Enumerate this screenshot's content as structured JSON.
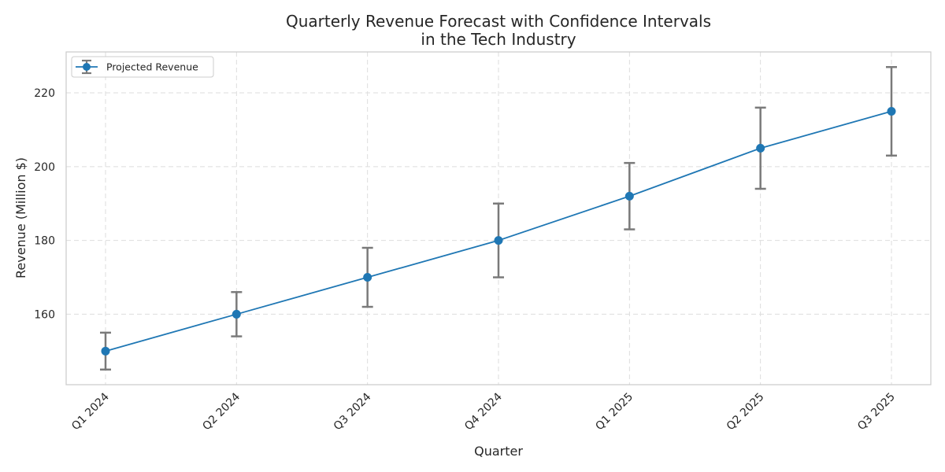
{
  "chart_data": {
    "type": "line",
    "title_line1": "Quarterly Revenue Forecast with Confidence Intervals",
    "title_line2": "in the Tech Industry",
    "xlabel": "Quarter",
    "ylabel": "Revenue (Million $)",
    "categories": [
      "Q1 2024",
      "Q2 2024",
      "Q3 2024",
      "Q4 2024",
      "Q1 2025",
      "Q2 2025",
      "Q3 2025"
    ],
    "series": [
      {
        "name": "Projected Revenue",
        "values": [
          150,
          160,
          170,
          180,
          192,
          205,
          215
        ],
        "lower": [
          145,
          154,
          162,
          170,
          183,
          194,
          203
        ],
        "upper": [
          155,
          166,
          178,
          190,
          201,
          216,
          227
        ]
      }
    ],
    "ylim": [
      140.9,
      231.1
    ],
    "yticks": [
      160,
      180,
      200,
      220
    ],
    "grid": true,
    "legend_position": "top-left",
    "colors": {
      "line": "#1f77b4",
      "errorbar": "#7a7a7a",
      "grid": "#dddddd",
      "frame": "#cccccc"
    }
  }
}
